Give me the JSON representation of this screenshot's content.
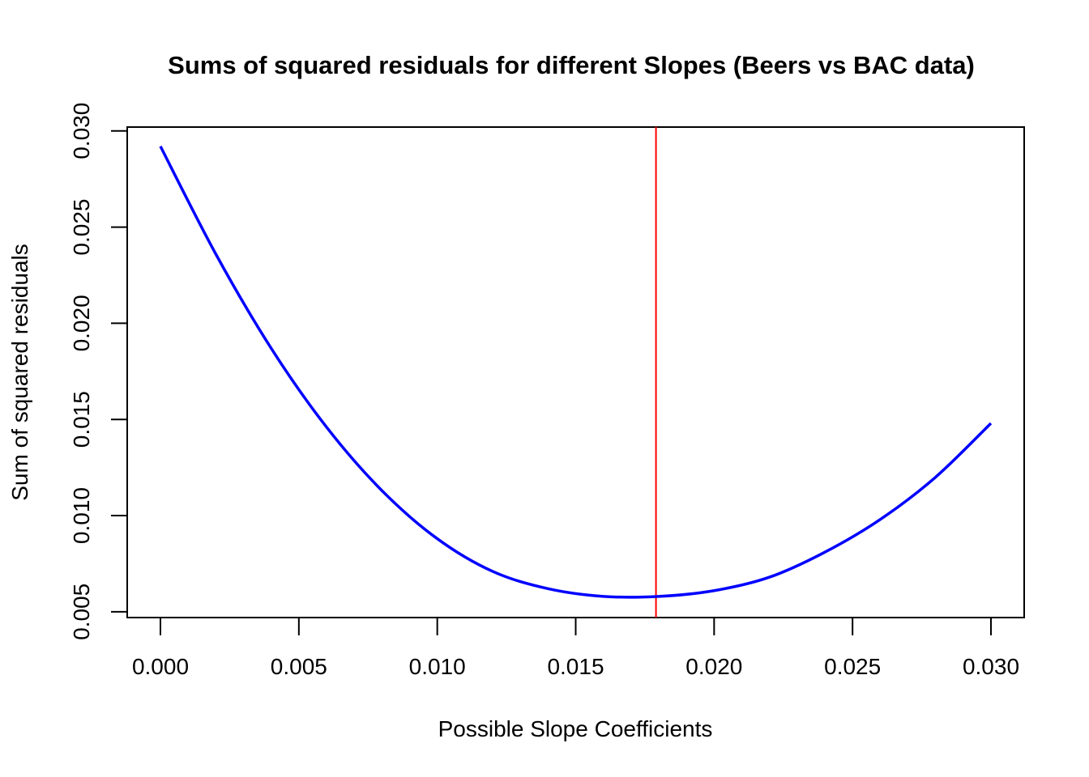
{
  "chart_data": {
    "type": "line",
    "title": "Sums of squared residuals for different Slopes (Beers vs BAC data)",
    "xlabel": "Possible Slope Coefficients",
    "ylabel": "Sum of squared residuals",
    "xlim": [
      -0.0012,
      0.0312
    ],
    "ylim": [
      0.0047,
      0.0302
    ],
    "x_ticks": [
      0.0,
      0.005,
      0.01,
      0.015,
      0.02,
      0.025,
      0.03
    ],
    "x_tick_labels": [
      "0.000",
      "0.005",
      "0.010",
      "0.015",
      "0.020",
      "0.025",
      "0.030"
    ],
    "y_ticks": [
      0.005,
      0.01,
      0.015,
      0.02,
      0.025,
      0.03
    ],
    "y_tick_labels": [
      "0.005",
      "0.010",
      "0.015",
      "0.020",
      "0.025",
      "0.030"
    ],
    "grid": false,
    "legend": "none",
    "series": [
      {
        "color": "#0000ff",
        "x": [
          0.0,
          0.002,
          0.004,
          0.006,
          0.008,
          0.01,
          0.012,
          0.014,
          0.016,
          0.018,
          0.02,
          0.022,
          0.024,
          0.026,
          0.028,
          0.03
        ],
        "y": [
          0.0292,
          0.0236,
          0.0187,
          0.0146,
          0.0113,
          0.0088,
          0.0071,
          0.0062,
          0.0058,
          0.0058,
          0.0061,
          0.0068,
          0.0081,
          0.0098,
          0.012,
          0.0148
        ]
      }
    ],
    "vline": {
      "x": 0.0179,
      "color": "#ff0000"
    }
  }
}
